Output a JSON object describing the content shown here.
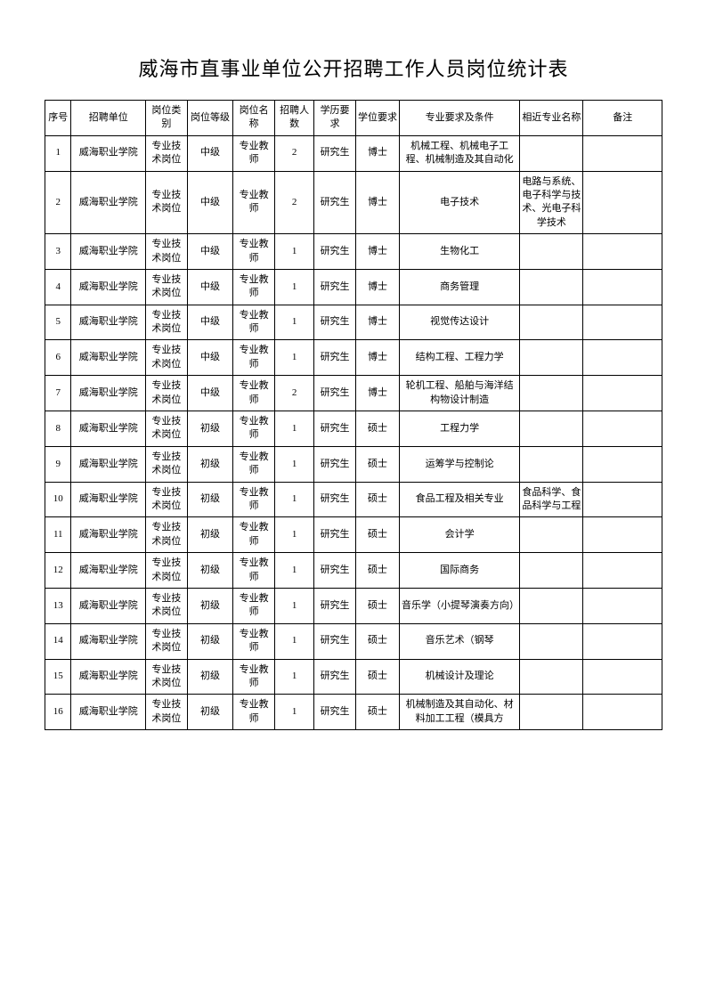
{
  "title": "威海市直事业单位公开招聘工作人员岗位统计表",
  "columns": [
    "序号",
    "招聘单位",
    "岗位类别",
    "岗位等级",
    "岗位名称",
    "招聘人数",
    "学历要求",
    "学位要求",
    "专业要求及条件",
    "相近专业名称",
    "备注"
  ],
  "rows": [
    [
      "1",
      "威海职业学院",
      "专业技术岗位",
      "中级",
      "专业教师",
      "2",
      "研究生",
      "博士",
      "机械工程、机械电子工程、机械制造及其自动化",
      "",
      ""
    ],
    [
      "2",
      "威海职业学院",
      "专业技术岗位",
      "中级",
      "专业教师",
      "2",
      "研究生",
      "博士",
      "电子技术",
      "电路与系统、电子科学与技术、光电子科学技术",
      ""
    ],
    [
      "3",
      "威海职业学院",
      "专业技术岗位",
      "中级",
      "专业教师",
      "1",
      "研究生",
      "博士",
      "生物化工",
      "",
      ""
    ],
    [
      "4",
      "威海职业学院",
      "专业技术岗位",
      "中级",
      "专业教师",
      "1",
      "研究生",
      "博士",
      "商务管理",
      "",
      ""
    ],
    [
      "5",
      "威海职业学院",
      "专业技术岗位",
      "中级",
      "专业教师",
      "1",
      "研究生",
      "博士",
      "视觉传达设计",
      "",
      ""
    ],
    [
      "6",
      "威海职业学院",
      "专业技术岗位",
      "中级",
      "专业教师",
      "1",
      "研究生",
      "博士",
      "结构工程、工程力学",
      "",
      ""
    ],
    [
      "7",
      "威海职业学院",
      "专业技术岗位",
      "中级",
      "专业教师",
      "2",
      "研究生",
      "博士",
      "轮机工程、船舶与海洋结构物设计制造",
      "",
      ""
    ],
    [
      "8",
      "威海职业学院",
      "专业技术岗位",
      "初级",
      "专业教师",
      "1",
      "研究生",
      "硕士",
      "工程力学",
      "",
      ""
    ],
    [
      "9",
      "威海职业学院",
      "专业技术岗位",
      "初级",
      "专业教师",
      "1",
      "研究生",
      "硕士",
      "运筹学与控制论",
      "",
      ""
    ],
    [
      "10",
      "威海职业学院",
      "专业技术岗位",
      "初级",
      "专业教师",
      "1",
      "研究生",
      "硕士",
      "食品工程及相关专业",
      "食品科学、食品科学与工程",
      ""
    ],
    [
      "11",
      "威海职业学院",
      "专业技术岗位",
      "初级",
      "专业教师",
      "1",
      "研究生",
      "硕士",
      "会计学",
      "",
      ""
    ],
    [
      "12",
      "威海职业学院",
      "专业技术岗位",
      "初级",
      "专业教师",
      "1",
      "研究生",
      "硕士",
      "国际商务",
      "",
      ""
    ],
    [
      "13",
      "威海职业学院",
      "专业技术岗位",
      "初级",
      "专业教师",
      "1",
      "研究生",
      "硕士",
      "音乐学（小提琴演奏方向）",
      "",
      ""
    ],
    [
      "14",
      "威海职业学院",
      "专业技术岗位",
      "初级",
      "专业教师",
      "1",
      "研究生",
      "硕士",
      "音乐艺术（钢琴",
      "",
      ""
    ],
    [
      "15",
      "威海职业学院",
      "专业技术岗位",
      "初级",
      "专业教师",
      "1",
      "研究生",
      "硕士",
      "机械设计及理论",
      "",
      ""
    ],
    [
      "16",
      "威海职业学院",
      "专业技术岗位",
      "初级",
      "专业教师",
      "1",
      "研究生",
      "硕士",
      "机械制造及其自动化、材料加工工程（模具方",
      "",
      ""
    ]
  ]
}
